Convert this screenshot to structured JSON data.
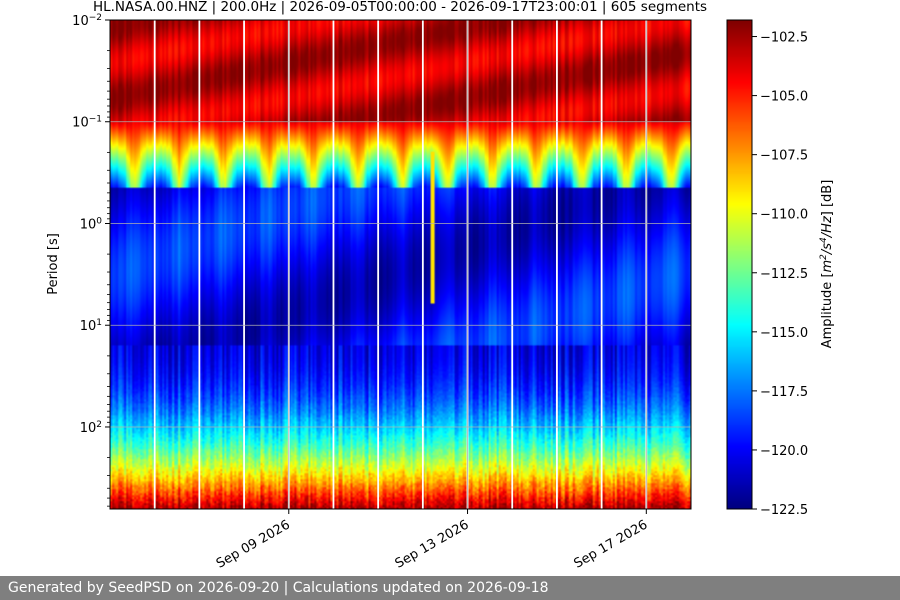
{
  "chart_data": {
    "type": "heatmap",
    "title": "HL.NASA.00.HNZ | 200.0Hz | 2026-09-05T00:00:00 - 2026-09-17T23:00:01 | 605 segments",
    "ylabel": "Period [s]",
    "y_scale": "log",
    "y_inverted": true,
    "ylim": [
      0.01,
      640
    ],
    "y_ticks": [
      {
        "value": 0.01,
        "base": "10",
        "exp": "−2"
      },
      {
        "value": 0.1,
        "base": "10",
        "exp": "−1"
      },
      {
        "value": 1,
        "base": "10",
        "exp": "0"
      },
      {
        "value": 10,
        "base": "10",
        "exp": "1"
      },
      {
        "value": 100,
        "base": "10",
        "exp": "2"
      }
    ],
    "xlim": [
      "2026-09-05T00:00:00",
      "2026-09-18T00:00:00"
    ],
    "x_ticks": [
      {
        "date": "2026-09-09",
        "label": "Sep 09 2026"
      },
      {
        "date": "2026-09-13",
        "label": "Sep 13 2026"
      },
      {
        "date": "2026-09-17",
        "label": "Sep 17 2026"
      }
    ],
    "grid": true,
    "colormap": "jet",
    "colorbar": {
      "label": "Amplitude [m²/s⁴/Hz] [dB]",
      "label_prefix": "Amplitude [",
      "label_math": "m",
      "label_sup1": "2",
      "label_mid": "/s",
      "label_sup2": "4",
      "label_end": "/Hz",
      "label_suffix": "] [dB]",
      "min": -122.5,
      "max": -101.8,
      "ticks": [
        -102.5,
        -105.0,
        -107.5,
        -110.0,
        -112.5,
        -115.0,
        -117.5,
        -120.0,
        -122.5
      ]
    },
    "day_boundaries": [
      "2026-09-06",
      "2026-09-07",
      "2026-09-08",
      "2026-09-09",
      "2026-09-10",
      "2026-09-11",
      "2026-09-12",
      "2026-09-13",
      "2026-09-14",
      "2026-09-15",
      "2026-09-16",
      "2026-09-17"
    ],
    "notable_event": {
      "date": "2026-09-12T05:00:00",
      "period_range_s": [
        0.2,
        6
      ]
    }
  },
  "footer": {
    "text": "Generated by SeedPSD on 2026-09-20 | Calculations updated on 2026-09-18"
  }
}
